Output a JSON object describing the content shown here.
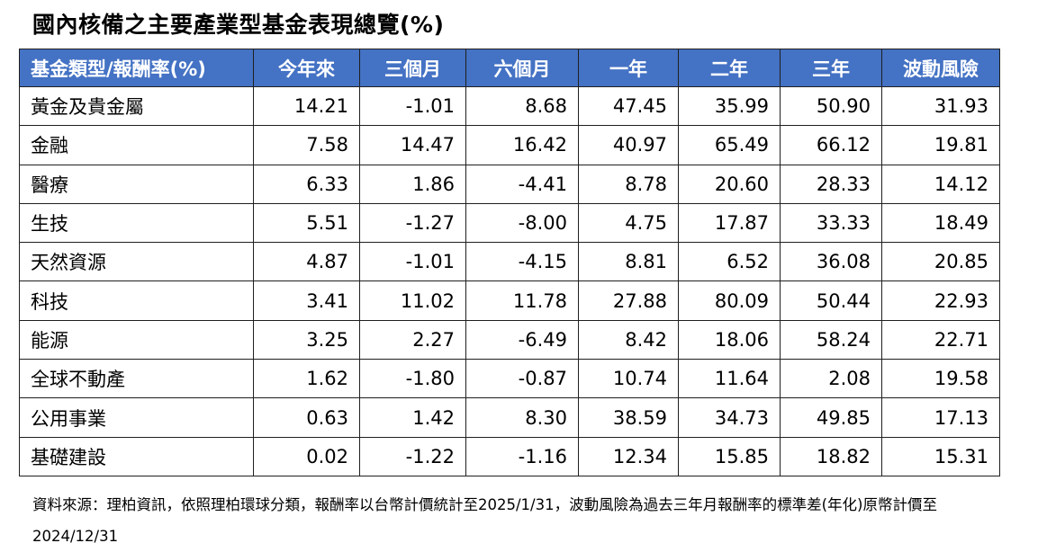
{
  "title": "國內核備之主要產業型基金表現總覽(%)",
  "chart_data": {
    "type": "table",
    "columns": [
      "基金類型/報酬率(%)",
      "今年來",
      "三個月",
      "六個月",
      "一年",
      "二年",
      "三年",
      "波動風險"
    ],
    "rows": [
      {
        "name": "黃金及貴金屬",
        "values": [
          "14.21",
          "-1.01",
          "8.68",
          "47.45",
          "35.99",
          "50.90",
          "31.93"
        ]
      },
      {
        "name": "金融",
        "values": [
          "7.58",
          "14.47",
          "16.42",
          "40.97",
          "65.49",
          "66.12",
          "19.81"
        ]
      },
      {
        "name": "醫療",
        "values": [
          "6.33",
          "1.86",
          "-4.41",
          "8.78",
          "20.60",
          "28.33",
          "14.12"
        ]
      },
      {
        "name": "生技",
        "values": [
          "5.51",
          "-1.27",
          "-8.00",
          "4.75",
          "17.87",
          "33.33",
          "18.49"
        ]
      },
      {
        "name": "天然資源",
        "values": [
          "4.87",
          "-1.01",
          "-4.15",
          "8.81",
          "6.52",
          "36.08",
          "20.85"
        ]
      },
      {
        "name": "科技",
        "values": [
          "3.41",
          "11.02",
          "11.78",
          "27.88",
          "80.09",
          "50.44",
          "22.93"
        ]
      },
      {
        "name": "能源",
        "values": [
          "3.25",
          "2.27",
          "-6.49",
          "8.42",
          "18.06",
          "58.24",
          "22.71"
        ]
      },
      {
        "name": "全球不動產",
        "values": [
          "1.62",
          "-1.80",
          "-0.87",
          "10.74",
          "11.64",
          "2.08",
          "19.58"
        ]
      },
      {
        "name": "公用事業",
        "values": [
          "0.63",
          "1.42",
          "8.30",
          "38.59",
          "34.73",
          "49.85",
          "17.13"
        ]
      },
      {
        "name": "基礎建設",
        "values": [
          "0.02",
          "-1.22",
          "-1.16",
          "12.34",
          "15.85",
          "18.82",
          "15.31"
        ]
      }
    ]
  },
  "note": {
    "line1": "資料來源：理柏資訊，依照理柏環球分類，報酬率以台幣計價統計至2025/1/31，波動風險為過去三年月報酬率的標準差(年化)原幣計價至",
    "line2": "2024/12/31"
  },
  "colors": {
    "header_bg": "#4472c4",
    "header_text": "#ffffff",
    "border": "#1f1f1f"
  }
}
